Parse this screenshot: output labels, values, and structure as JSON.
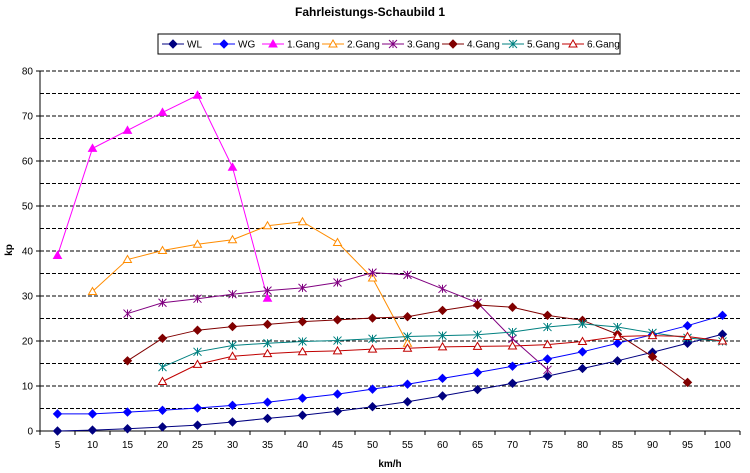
{
  "chart_data": {
    "type": "line",
    "title": "Fahrleistungs-Schaubild 1",
    "xlabel": "km/h",
    "ylabel": "kp",
    "x": [
      5,
      10,
      15,
      20,
      25,
      30,
      35,
      40,
      45,
      50,
      55,
      60,
      65,
      70,
      75,
      80,
      85,
      90,
      95,
      100
    ],
    "xlim": [
      5,
      100
    ],
    "ylim": [
      0,
      80
    ],
    "y_ticks": [
      0,
      10,
      20,
      30,
      40,
      50,
      60,
      70,
      80
    ],
    "grid": "dashed horizontal every 5",
    "legend_position": "top",
    "series": [
      {
        "name": "WL",
        "color": "#000080",
        "marker": "diamond",
        "points": [
          [
            5,
            0
          ],
          [
            10,
            0.2
          ],
          [
            15,
            0.5
          ],
          [
            20,
            0.9
          ],
          [
            25,
            1.3
          ],
          [
            30,
            2
          ],
          [
            35,
            2.8
          ],
          [
            40,
            3.5
          ],
          [
            45,
            4.4
          ],
          [
            50,
            5.4
          ],
          [
            55,
            6.5
          ],
          [
            60,
            7.8
          ],
          [
            65,
            9.2
          ],
          [
            70,
            10.6
          ],
          [
            75,
            12.2
          ],
          [
            80,
            13.9
          ],
          [
            85,
            15.6
          ],
          [
            90,
            17.5
          ],
          [
            95,
            19.5
          ],
          [
            100,
            21.5
          ]
        ]
      },
      {
        "name": "WG",
        "color": "#0000ff",
        "marker": "diamond",
        "points": [
          [
            5,
            3.8
          ],
          [
            10,
            3.8
          ],
          [
            15,
            4.2
          ],
          [
            20,
            4.6
          ],
          [
            25,
            5.1
          ],
          [
            30,
            5.7
          ],
          [
            35,
            6.4
          ],
          [
            40,
            7.3
          ],
          [
            45,
            8.2
          ],
          [
            50,
            9.3
          ],
          [
            55,
            10.4
          ],
          [
            60,
            11.7
          ],
          [
            65,
            13
          ],
          [
            70,
            14.4
          ],
          [
            75,
            16
          ],
          [
            80,
            17.6
          ],
          [
            85,
            19.5
          ],
          [
            90,
            21.4
          ],
          [
            95,
            23.4
          ],
          [
            100,
            25.7
          ]
        ]
      },
      {
        "name": "1.Gang",
        "color": "#ff00ff",
        "marker": "triangle",
        "points": [
          [
            5,
            39
          ],
          [
            10,
            62.8
          ],
          [
            15,
            66.8
          ],
          [
            20,
            70.8
          ],
          [
            25,
            74.6
          ],
          [
            30,
            58.6
          ],
          [
            35,
            29.5
          ]
        ]
      },
      {
        "name": "2.Gang",
        "color": "#ff8c00",
        "marker": "triangle-open",
        "points": [
          [
            10,
            31
          ],
          [
            15,
            38.1
          ],
          [
            20,
            40.1
          ],
          [
            25,
            41.5
          ],
          [
            30,
            42.5
          ],
          [
            35,
            45.6
          ],
          [
            40,
            46.5
          ],
          [
            45,
            41.9
          ],
          [
            50,
            34
          ],
          [
            55,
            19.5
          ]
        ]
      },
      {
        "name": "3.Gang",
        "color": "#800080",
        "marker": "star",
        "points": [
          [
            15,
            26.1
          ],
          [
            20,
            28.5
          ],
          [
            25,
            29.4
          ],
          [
            30,
            30.4
          ],
          [
            35,
            31.2
          ],
          [
            40,
            31.8
          ],
          [
            45,
            33
          ],
          [
            50,
            35.2
          ],
          [
            55,
            34.7
          ],
          [
            60,
            31.6
          ],
          [
            65,
            28.5
          ],
          [
            70,
            20.5
          ],
          [
            75,
            13.6
          ]
        ]
      },
      {
        "name": "4.Gang",
        "color": "#800000",
        "marker": "diamond",
        "points": [
          [
            15,
            15.6
          ],
          [
            20,
            20.6
          ],
          [
            25,
            22.4
          ],
          [
            30,
            23.2
          ],
          [
            35,
            23.7
          ],
          [
            40,
            24.3
          ],
          [
            45,
            24.7
          ],
          [
            50,
            25.1
          ],
          [
            55,
            25.4
          ],
          [
            60,
            26.8
          ],
          [
            65,
            28
          ],
          [
            70,
            27.5
          ],
          [
            75,
            25.7
          ],
          [
            80,
            24.6
          ],
          [
            85,
            21.5
          ],
          [
            90,
            16.5
          ],
          [
            95,
            10.8
          ]
        ]
      },
      {
        "name": "5.Gang",
        "color": "#008080",
        "marker": "star",
        "points": [
          [
            20,
            14.2
          ],
          [
            25,
            17.6
          ],
          [
            30,
            19
          ],
          [
            35,
            19.5
          ],
          [
            40,
            19.9
          ],
          [
            45,
            20.1
          ],
          [
            50,
            20.5
          ],
          [
            55,
            21
          ],
          [
            60,
            21.2
          ],
          [
            65,
            21.4
          ],
          [
            70,
            22
          ],
          [
            75,
            23.1
          ],
          [
            80,
            23.8
          ],
          [
            85,
            23.1
          ],
          [
            90,
            21.8
          ],
          [
            95,
            20.7
          ],
          [
            100,
            19.9
          ]
        ]
      },
      {
        "name": "6.Gang",
        "color": "#c00000",
        "marker": "triangle-open",
        "points": [
          [
            20,
            11
          ],
          [
            25,
            14.8
          ],
          [
            30,
            16.6
          ],
          [
            35,
            17.2
          ],
          [
            40,
            17.6
          ],
          [
            45,
            17.8
          ],
          [
            50,
            18.2
          ],
          [
            55,
            18.4
          ],
          [
            60,
            18.7
          ],
          [
            65,
            18.8
          ],
          [
            70,
            18.9
          ],
          [
            75,
            19.2
          ],
          [
            80,
            19.9
          ],
          [
            85,
            21
          ],
          [
            90,
            21.2
          ],
          [
            95,
            21
          ],
          [
            100,
            20
          ]
        ]
      }
    ]
  }
}
